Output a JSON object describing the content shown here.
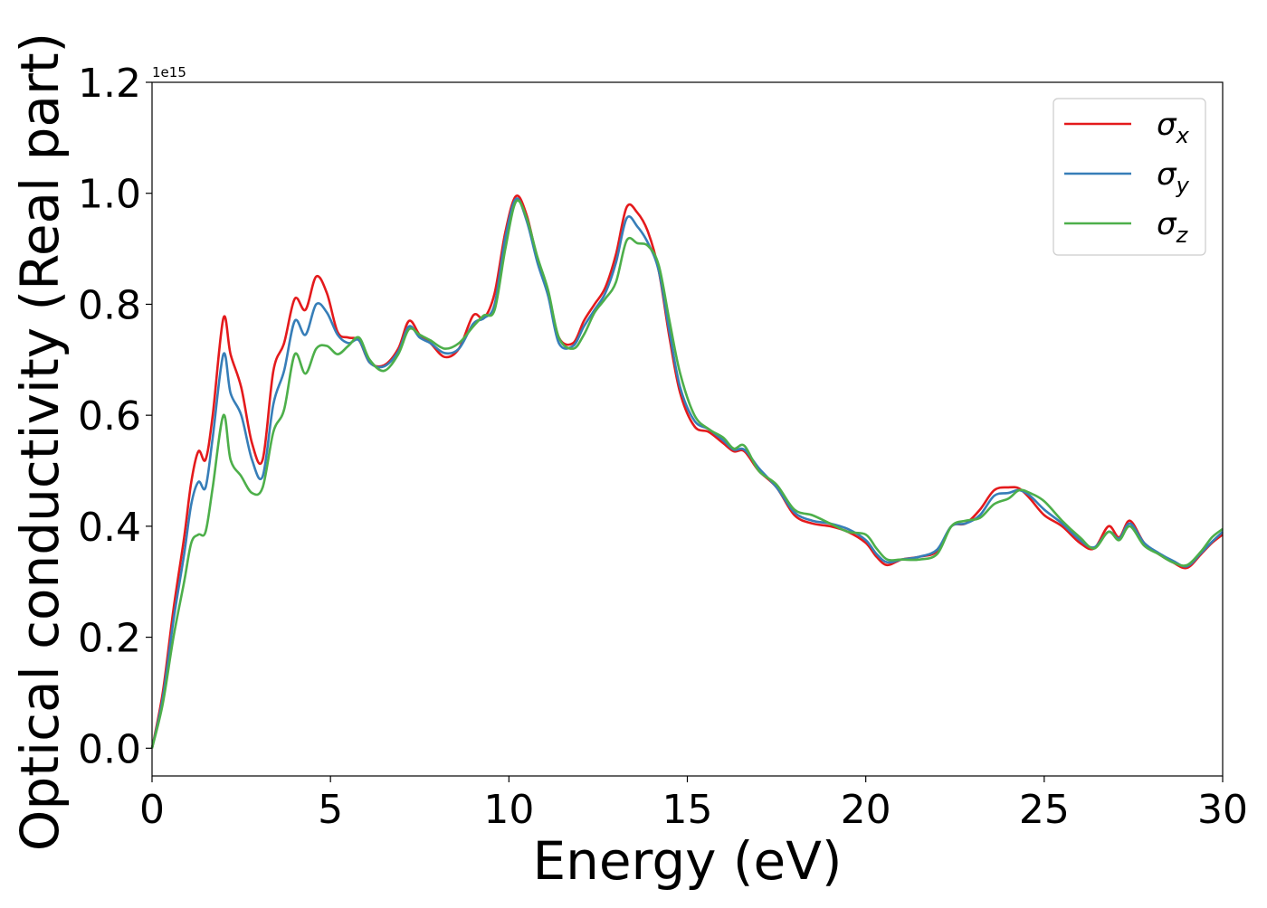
{
  "chart_data": {
    "type": "line",
    "xlabel": "Energy (eV)",
    "ylabel": "Optical conductivity (Real part)",
    "y_offset_text": "1e15",
    "xlim": [
      0,
      30
    ],
    "ylim": [
      -0.05,
      1.2
    ],
    "y_scale_factor": 1000000000000000.0,
    "xticks": [
      0,
      5,
      10,
      15,
      20,
      25,
      30
    ],
    "xtick_labels": [
      "0",
      "5",
      "10",
      "15",
      "20",
      "25",
      "30"
    ],
    "yticks": [
      0.0,
      0.2,
      0.4,
      0.6,
      0.8,
      1.0,
      1.2
    ],
    "ytick_labels": [
      "0.0",
      "0.2",
      "0.4",
      "0.6",
      "0.8",
      "1.0",
      "1.2"
    ],
    "grid": false,
    "legend_position": "top-right",
    "series": [
      {
        "name": "σx",
        "base": "σ",
        "sub": "x",
        "color": "#e41a1c",
        "x": [
          0,
          0.3,
          0.6,
          0.9,
          1.1,
          1.3,
          1.5,
          1.7,
          2.0,
          2.2,
          2.5,
          2.8,
          3.1,
          3.4,
          3.7,
          4.0,
          4.3,
          4.6,
          4.9,
          5.2,
          5.5,
          5.8,
          6.1,
          6.5,
          6.9,
          7.2,
          7.5,
          7.8,
          8.2,
          8.6,
          9.0,
          9.3,
          9.6,
          9.9,
          10.2,
          10.5,
          10.8,
          11.1,
          11.4,
          11.8,
          12.1,
          12.4,
          12.7,
          13.0,
          13.3,
          13.6,
          13.9,
          14.2,
          14.5,
          14.8,
          15.2,
          15.6,
          16.0,
          16.3,
          16.6,
          17.0,
          17.5,
          18.0,
          18.5,
          19.0,
          19.5,
          20.0,
          20.3,
          20.6,
          21.0,
          21.5,
          22.0,
          22.4,
          22.8,
          23.2,
          23.6,
          24.0,
          24.3,
          24.6,
          25.0,
          25.5,
          26.0,
          26.4,
          26.8,
          27.1,
          27.4,
          27.8,
          28.2,
          28.6,
          29.0,
          29.4,
          29.7,
          30.0
        ],
        "y": [
          0.0,
          0.1,
          0.25,
          0.38,
          0.48,
          0.535,
          0.52,
          0.6,
          0.775,
          0.71,
          0.65,
          0.55,
          0.52,
          0.68,
          0.73,
          0.81,
          0.79,
          0.85,
          0.82,
          0.75,
          0.74,
          0.735,
          0.695,
          0.69,
          0.72,
          0.77,
          0.745,
          0.73,
          0.705,
          0.72,
          0.78,
          0.775,
          0.82,
          0.93,
          0.995,
          0.96,
          0.88,
          0.82,
          0.74,
          0.73,
          0.77,
          0.8,
          0.83,
          0.89,
          0.975,
          0.965,
          0.93,
          0.86,
          0.74,
          0.64,
          0.58,
          0.57,
          0.55,
          0.535,
          0.535,
          0.5,
          0.47,
          0.42,
          0.405,
          0.4,
          0.39,
          0.37,
          0.345,
          0.33,
          0.34,
          0.345,
          0.355,
          0.4,
          0.405,
          0.43,
          0.465,
          0.47,
          0.468,
          0.45,
          0.42,
          0.4,
          0.37,
          0.36,
          0.4,
          0.38,
          0.41,
          0.37,
          0.35,
          0.335,
          0.325,
          0.35,
          0.37,
          0.385
        ]
      },
      {
        "name": "σy",
        "base": "σ",
        "sub": "y",
        "color": "#377eb8",
        "x": [
          0,
          0.3,
          0.6,
          0.9,
          1.1,
          1.3,
          1.5,
          1.7,
          2.0,
          2.2,
          2.5,
          2.8,
          3.1,
          3.4,
          3.7,
          4.0,
          4.3,
          4.6,
          4.9,
          5.2,
          5.5,
          5.8,
          6.1,
          6.5,
          6.9,
          7.2,
          7.5,
          7.8,
          8.2,
          8.6,
          9.0,
          9.3,
          9.6,
          9.9,
          10.2,
          10.5,
          10.8,
          11.1,
          11.4,
          11.8,
          12.1,
          12.4,
          12.7,
          13.0,
          13.3,
          13.6,
          13.9,
          14.2,
          14.5,
          14.8,
          15.2,
          15.6,
          16.0,
          16.3,
          16.6,
          17.0,
          17.5,
          18.0,
          18.5,
          19.0,
          19.5,
          20.0,
          20.3,
          20.6,
          21.0,
          21.5,
          22.0,
          22.4,
          22.8,
          23.2,
          23.6,
          24.0,
          24.3,
          24.6,
          25.0,
          25.5,
          26.0,
          26.4,
          26.8,
          27.1,
          27.4,
          27.8,
          28.2,
          28.6,
          29.0,
          29.4,
          29.7,
          30.0
        ],
        "y": [
          0.0,
          0.09,
          0.23,
          0.35,
          0.44,
          0.48,
          0.47,
          0.56,
          0.71,
          0.64,
          0.6,
          0.52,
          0.49,
          0.62,
          0.68,
          0.77,
          0.745,
          0.8,
          0.785,
          0.745,
          0.73,
          0.735,
          0.695,
          0.688,
          0.715,
          0.76,
          0.74,
          0.73,
          0.712,
          0.72,
          0.765,
          0.775,
          0.8,
          0.92,
          0.99,
          0.95,
          0.875,
          0.815,
          0.73,
          0.725,
          0.76,
          0.79,
          0.82,
          0.875,
          0.955,
          0.94,
          0.91,
          0.86,
          0.75,
          0.65,
          0.59,
          0.575,
          0.555,
          0.538,
          0.538,
          0.505,
          0.47,
          0.425,
          0.41,
          0.405,
          0.395,
          0.375,
          0.35,
          0.335,
          0.34,
          0.345,
          0.358,
          0.4,
          0.405,
          0.42,
          0.455,
          0.46,
          0.465,
          0.455,
          0.43,
          0.405,
          0.375,
          0.362,
          0.39,
          0.378,
          0.405,
          0.37,
          0.352,
          0.338,
          0.328,
          0.352,
          0.372,
          0.39
        ]
      },
      {
        "name": "σz",
        "base": "σ",
        "sub": "z",
        "color": "#4daf4a",
        "x": [
          0,
          0.3,
          0.6,
          0.9,
          1.1,
          1.3,
          1.5,
          1.7,
          2.0,
          2.2,
          2.5,
          2.8,
          3.1,
          3.4,
          3.7,
          4.0,
          4.3,
          4.6,
          4.9,
          5.2,
          5.5,
          5.8,
          6.1,
          6.5,
          6.9,
          7.2,
          7.5,
          7.8,
          8.2,
          8.6,
          9.0,
          9.3,
          9.6,
          9.9,
          10.2,
          10.5,
          10.8,
          11.1,
          11.4,
          11.8,
          12.1,
          12.4,
          12.7,
          13.0,
          13.3,
          13.6,
          13.9,
          14.2,
          14.5,
          14.8,
          15.2,
          15.6,
          16.0,
          16.3,
          16.6,
          17.0,
          17.5,
          18.0,
          18.5,
          19.0,
          19.5,
          20.0,
          20.3,
          20.6,
          21.0,
          21.5,
          22.0,
          22.4,
          22.8,
          23.2,
          23.6,
          24.0,
          24.3,
          24.6,
          25.0,
          25.5,
          26.0,
          26.4,
          26.8,
          27.1,
          27.4,
          27.8,
          28.2,
          28.6,
          29.0,
          29.4,
          29.7,
          30.0
        ],
        "y": [
          0.0,
          0.08,
          0.2,
          0.3,
          0.37,
          0.385,
          0.39,
          0.47,
          0.6,
          0.52,
          0.49,
          0.46,
          0.47,
          0.57,
          0.61,
          0.71,
          0.675,
          0.72,
          0.725,
          0.71,
          0.725,
          0.74,
          0.7,
          0.68,
          0.71,
          0.755,
          0.745,
          0.735,
          0.72,
          0.73,
          0.76,
          0.78,
          0.79,
          0.9,
          0.985,
          0.955,
          0.885,
          0.825,
          0.74,
          0.72,
          0.745,
          0.785,
          0.81,
          0.84,
          0.915,
          0.91,
          0.905,
          0.87,
          0.77,
          0.675,
          0.6,
          0.575,
          0.56,
          0.54,
          0.545,
          0.5,
          0.475,
          0.43,
          0.42,
          0.405,
          0.39,
          0.385,
          0.36,
          0.34,
          0.34,
          0.34,
          0.35,
          0.4,
          0.41,
          0.415,
          0.44,
          0.45,
          0.465,
          0.46,
          0.445,
          0.41,
          0.38,
          0.36,
          0.39,
          0.375,
          0.4,
          0.365,
          0.35,
          0.335,
          0.33,
          0.355,
          0.38,
          0.395
        ]
      }
    ]
  }
}
